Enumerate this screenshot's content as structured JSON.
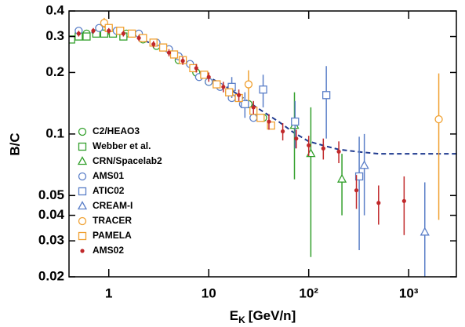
{
  "chart_data": {
    "type": "scatter",
    "log_x": true,
    "log_y": true,
    "xlabel": [
      "E",
      "K",
      "[GeV/n]"
    ],
    "ylabel": "B/C",
    "xlim": [
      0.4,
      3000
    ],
    "ylim": [
      0.02,
      0.4
    ],
    "xticks": [
      1,
      10,
      {
        "value": 100,
        "label": "10²"
      },
      {
        "value": 1000,
        "label": "10³"
      }
    ],
    "yticks": [
      0.02,
      0.03,
      0.04,
      0.05,
      0.1,
      0.2,
      0.3,
      0.4
    ],
    "legend": "lower-left",
    "model": {
      "color": "#1f3a8f",
      "dash": true,
      "x": [
        0.4,
        0.5,
        0.7,
        1,
        1.5,
        2,
        3,
        5,
        7,
        10,
        15,
        20,
        30,
        50,
        70,
        100,
        150,
        200,
        300,
        500,
        1000,
        2000,
        3000
      ],
      "values": [
        0.29,
        0.3,
        0.315,
        0.32,
        0.31,
        0.295,
        0.27,
        0.235,
        0.21,
        0.19,
        0.17,
        0.155,
        0.135,
        0.115,
        0.102,
        0.092,
        0.087,
        0.084,
        0.082,
        0.08,
        0.08,
        0.08,
        0.08
      ]
    },
    "series": [
      {
        "name": "C2/HEAO3",
        "color": "#33a02c",
        "marker": "circle",
        "x": [
          0.6,
          0.8,
          1.0,
          1.5,
          2.2,
          3.0,
          5,
          7.5,
          10,
          16,
          25,
          35
        ],
        "values": [
          0.31,
          0.315,
          0.32,
          0.31,
          0.29,
          0.27,
          0.23,
          0.2,
          0.18,
          0.16,
          0.14,
          0.12
        ]
      },
      {
        "name": "Webber et al.",
        "color": "#33a02c",
        "marker": "square",
        "x": [
          0.42,
          0.5,
          0.6,
          0.75,
          0.9,
          1.1,
          1.4
        ],
        "values": [
          0.29,
          0.3,
          0.3,
          0.31,
          0.31,
          0.31,
          0.3
        ]
      },
      {
        "name": "CRN/Spacelab2",
        "color": "#33a02c",
        "marker": "triangle",
        "x": [
          72,
          105,
          215
        ],
        "values": [
          0.11,
          0.08,
          0.06
        ],
        "errors": [
          0.05,
          0.055,
          0.02
        ]
      },
      {
        "name": "AMS01",
        "color": "#5b7fc8",
        "marker": "circle",
        "x": [
          0.5,
          0.8,
          1.2,
          2,
          3,
          4,
          5,
          6.5,
          8,
          10,
          13,
          17,
          22,
          28
        ],
        "values": [
          0.32,
          0.33,
          0.32,
          0.31,
          0.28,
          0.26,
          0.24,
          0.22,
          0.19,
          0.18,
          0.17,
          0.15,
          0.14,
          0.12
        ]
      },
      {
        "name": "ATIC02",
        "color": "#5b7fc8",
        "marker": "square",
        "x": [
          17,
          23,
          35,
          73,
          150,
          320
        ],
        "values": [
          0.17,
          0.14,
          0.165,
          0.115,
          0.155,
          0.062
        ],
        "errors": [
          0.02,
          0.02,
          0.03,
          0.03,
          0.06,
          0.035
        ]
      },
      {
        "name": "CREAM-I",
        "color": "#5b7fc8",
        "marker": "triangle",
        "x": [
          360,
          1450
        ],
        "values": [
          0.07,
          0.033
        ],
        "errors": [
          0.03,
          0.025
        ]
      },
      {
        "name": "TRACER",
        "color": "#f0a030",
        "marker": "circle",
        "x": [
          0.9,
          25,
          2000
        ],
        "values": [
          0.35,
          0.175,
          0.118
        ],
        "errors": [
          0.02,
          0.03,
          0.08
        ]
      },
      {
        "name": "PAMELA",
        "color": "#f0a030",
        "marker": "square",
        "x": [
          1.0,
          1.3,
          1.7,
          2.2,
          2.8,
          3.5,
          4.5,
          5.5,
          7,
          9,
          12,
          16,
          20,
          28,
          33,
          42
        ],
        "values": [
          0.33,
          0.32,
          0.31,
          0.295,
          0.28,
          0.265,
          0.245,
          0.23,
          0.21,
          0.195,
          0.175,
          0.16,
          0.15,
          0.13,
          0.12,
          0.11
        ]
      },
      {
        "name": "AMS02",
        "color": "#c0282a",
        "marker": "dot",
        "x": [
          0.5,
          0.7,
          1,
          1.4,
          2,
          2.8,
          4,
          5.5,
          7.5,
          10,
          14,
          20,
          28,
          40,
          55,
          75,
          100,
          140,
          200,
          300,
          500,
          900
        ],
        "values": [
          0.31,
          0.32,
          0.32,
          0.31,
          0.295,
          0.275,
          0.25,
          0.228,
          0.21,
          0.19,
          0.17,
          0.155,
          0.135,
          0.115,
          0.103,
          0.095,
          0.088,
          0.085,
          0.082,
          0.053,
          0.046,
          0.047
        ],
        "errors": [
          0.01,
          0.01,
          0.01,
          0.01,
          0.01,
          0.01,
          0.01,
          0.01,
          0.01,
          0.01,
          0.01,
          0.01,
          0.01,
          0.01,
          0.01,
          0.01,
          0.01,
          0.01,
          0.01,
          0.01,
          0.01,
          0.015
        ]
      }
    ]
  }
}
